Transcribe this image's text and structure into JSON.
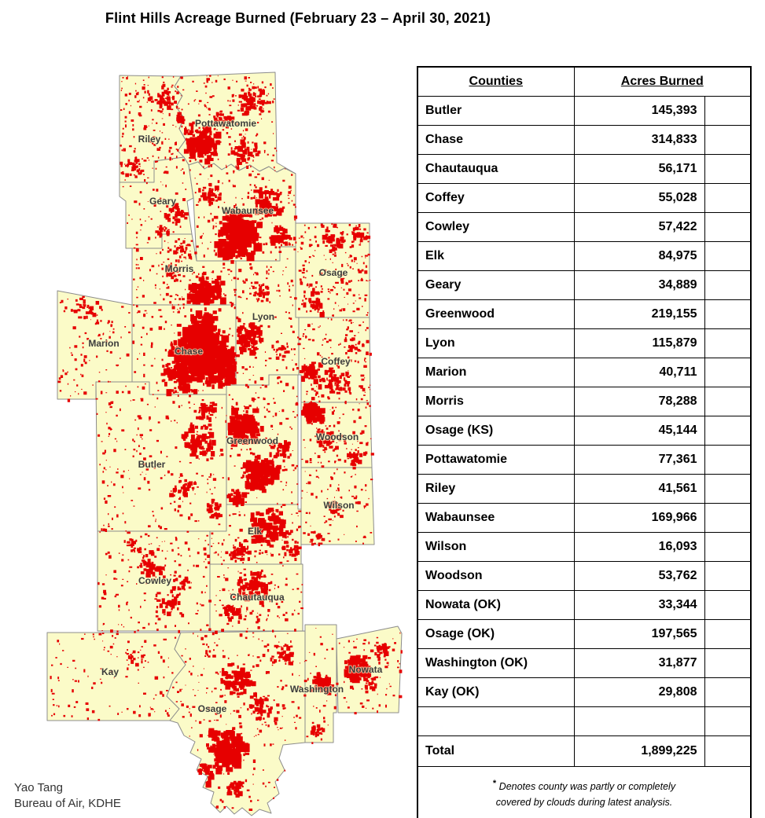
{
  "title": "Flint Hills Acreage Burned (February 23 – April 30, 2021)",
  "colors": {
    "county_fill": "#FBFBC8",
    "burn_red": "#E60000",
    "border_gray": "#8C8C8C"
  },
  "map": {
    "labels": [
      {
        "text": "Riley"
      },
      {
        "text": "Pottawatomie"
      },
      {
        "text": "Geary"
      },
      {
        "text": "Wabaunsee"
      },
      {
        "text": "Morris"
      },
      {
        "text": "Osage"
      },
      {
        "text": "Marion"
      },
      {
        "text": "Chase"
      },
      {
        "text": "Lyon"
      },
      {
        "text": "Coffey"
      },
      {
        "text": "Greenwood"
      },
      {
        "text": "Woodson"
      },
      {
        "text": "Butler"
      },
      {
        "text": "Wilson"
      },
      {
        "text": "Elk"
      },
      {
        "text": "Cowley"
      },
      {
        "text": "Chautauqua"
      },
      {
        "text": "Kay"
      },
      {
        "text": "Osage"
      },
      {
        "text": "Washington"
      },
      {
        "text": "Nowata"
      }
    ]
  },
  "table": {
    "col1_header": "Counties",
    "col2_header": "Acres Burned",
    "rows": [
      {
        "county": "Butler",
        "acres": "145,393"
      },
      {
        "county": "Chase",
        "acres": "314,833"
      },
      {
        "county": "Chautauqua",
        "acres": "56,171"
      },
      {
        "county": "Coffey",
        "acres": "55,028"
      },
      {
        "county": "Cowley",
        "acres": "57,422"
      },
      {
        "county": "Elk",
        "acres": "84,975"
      },
      {
        "county": "Geary",
        "acres": "34,889"
      },
      {
        "county": "Greenwood",
        "acres": "219,155"
      },
      {
        "county": "Lyon",
        "acres": "115,879"
      },
      {
        "county": "Marion",
        "acres": "40,711"
      },
      {
        "county": "Morris",
        "acres": "78,288"
      },
      {
        "county": "Osage (KS)",
        "acres": "45,144"
      },
      {
        "county": "Pottawatomie",
        "acres": "77,361"
      },
      {
        "county": "Riley",
        "acres": "41,561"
      },
      {
        "county": "Wabaunsee",
        "acres": "169,966"
      },
      {
        "county": "Wilson",
        "acres": "16,093"
      },
      {
        "county": "Woodson",
        "acres": "53,762"
      },
      {
        "county": "Nowata (OK)",
        "acres": "33,344"
      },
      {
        "county": "Osage (OK)",
        "acres": "197,565"
      },
      {
        "county": "Washington (OK)",
        "acres": "31,877"
      },
      {
        "county": "Kay (OK)",
        "acres": "29,808"
      }
    ],
    "total_label": "Total",
    "total_acres": "1,899,225",
    "footnote_marker": "*",
    "footnote_line1": "Denotes county was partly or completely",
    "footnote_line2": "covered by clouds during latest analysis."
  },
  "credit": {
    "line1": "Yao Tang",
    "line2": "Bureau of Air, KDHE"
  }
}
